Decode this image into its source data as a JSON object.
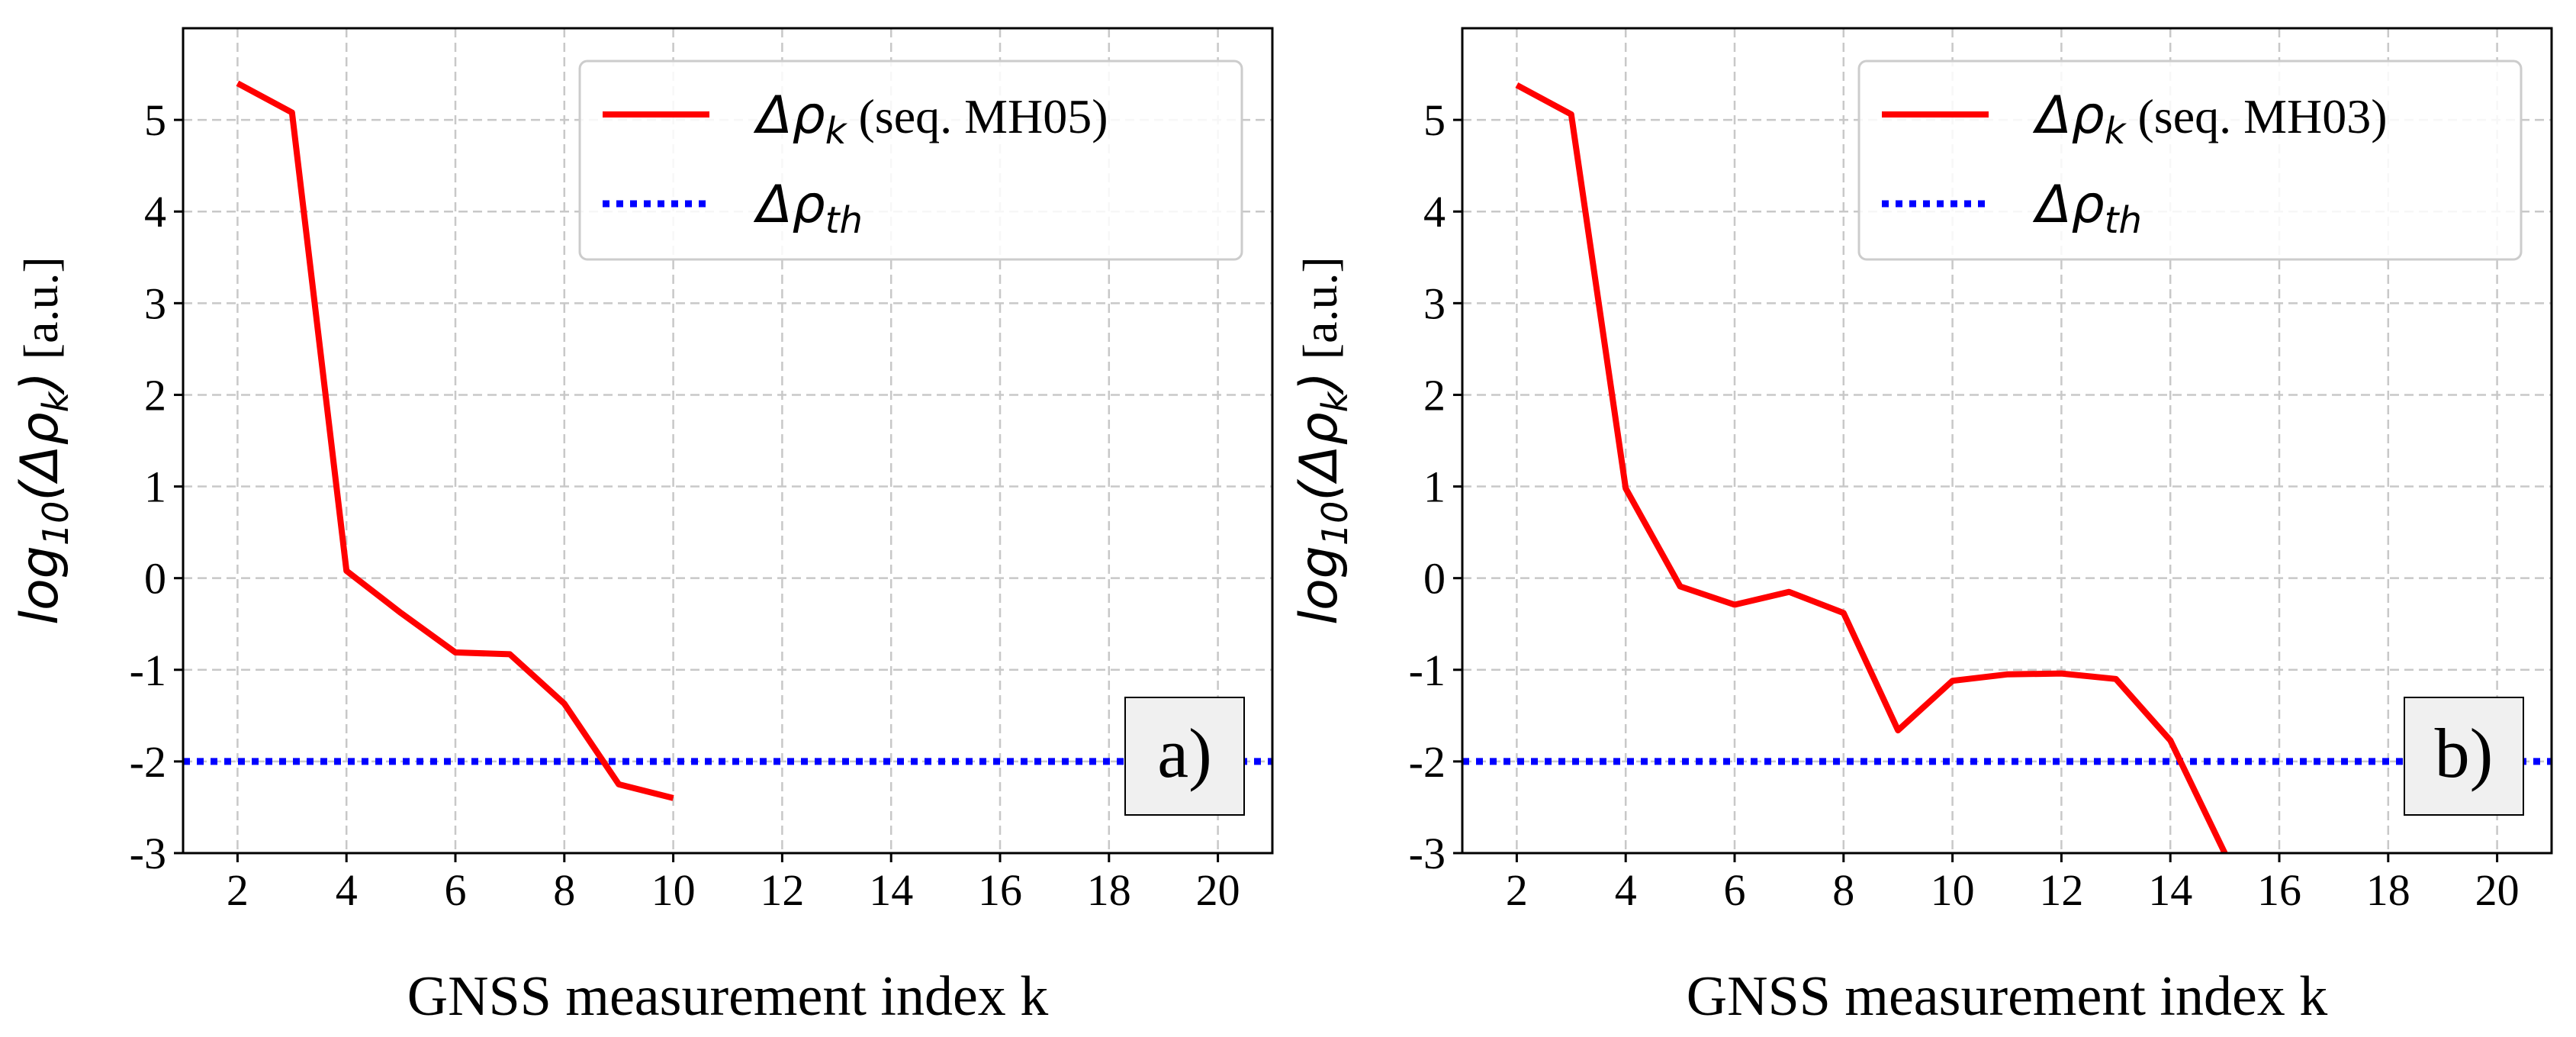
{
  "figure": {
    "colors": {
      "series": "#ff0000",
      "threshold": "#0000ff",
      "grid": "#c8c8c8",
      "axes": "#000000",
      "panel_label_bg": "#f0f0f0"
    }
  },
  "chart_data": [
    {
      "type": "line",
      "panel_label": "a)",
      "xlabel": "GNSS measurement index k",
      "ylabel_parts": {
        "pre": "log",
        "sub": "10",
        "mid": "(Δρ",
        "ksub": "k",
        "post": ")",
        "units": " [a.u.]"
      },
      "xlim": [
        1,
        21
      ],
      "ylim": [
        -3,
        6
      ],
      "xticks": [
        2,
        4,
        6,
        8,
        10,
        12,
        14,
        16,
        18,
        20
      ],
      "yticks": [
        -3,
        -2,
        -1,
        0,
        1,
        2,
        3,
        4,
        5
      ],
      "grid": true,
      "legend_position": "top-right",
      "legend": [
        {
          "label_math": "Δρ",
          "label_sub": "k",
          "label_text": " (seq. MH05)",
          "style": "solid"
        },
        {
          "label_math": "Δρ",
          "label_sub": "th",
          "label_text": "",
          "style": "dotted"
        }
      ],
      "series": [
        {
          "name": "Δρk (seq. MH05)",
          "x": [
            2,
            3,
            4,
            5,
            6,
            7,
            8,
            9,
            10
          ],
          "values": [
            5.4,
            5.08,
            0.08,
            -0.38,
            -0.81,
            -0.83,
            -1.37,
            -2.25,
            -2.4
          ]
        }
      ],
      "threshold": {
        "name": "Δρth",
        "value": -2.0
      }
    },
    {
      "type": "line",
      "panel_label": "b)",
      "xlabel": "GNSS measurement index k",
      "ylabel_parts": {
        "pre": "log",
        "sub": "10",
        "mid": "(Δρ",
        "ksub": "k",
        "post": ")",
        "units": " [a.u.]"
      },
      "xlim": [
        1,
        21
      ],
      "ylim": [
        -3,
        6
      ],
      "xticks": [
        2,
        4,
        6,
        8,
        10,
        12,
        14,
        16,
        18,
        20
      ],
      "yticks": [
        -3,
        -2,
        -1,
        0,
        1,
        2,
        3,
        4,
        5
      ],
      "grid": true,
      "legend_position": "top-right",
      "legend": [
        {
          "label_math": "Δρ",
          "label_sub": "k",
          "label_text": " (seq. MH03)",
          "style": "solid"
        },
        {
          "label_math": "Δρ",
          "label_sub": "th",
          "label_text": "",
          "style": "dotted"
        }
      ],
      "series": [
        {
          "name": "Δρk (seq. MH03)",
          "x": [
            2,
            3,
            4,
            5,
            6,
            7,
            8,
            9,
            10,
            11,
            12,
            13,
            14,
            15
          ],
          "values": [
            5.38,
            5.06,
            0.98,
            -0.09,
            -0.29,
            -0.15,
            -0.38,
            -1.66,
            -1.12,
            -1.05,
            -1.04,
            -1.1,
            -1.77,
            -3.0
          ]
        }
      ],
      "threshold": {
        "name": "Δρth",
        "value": -2.0
      }
    }
  ]
}
